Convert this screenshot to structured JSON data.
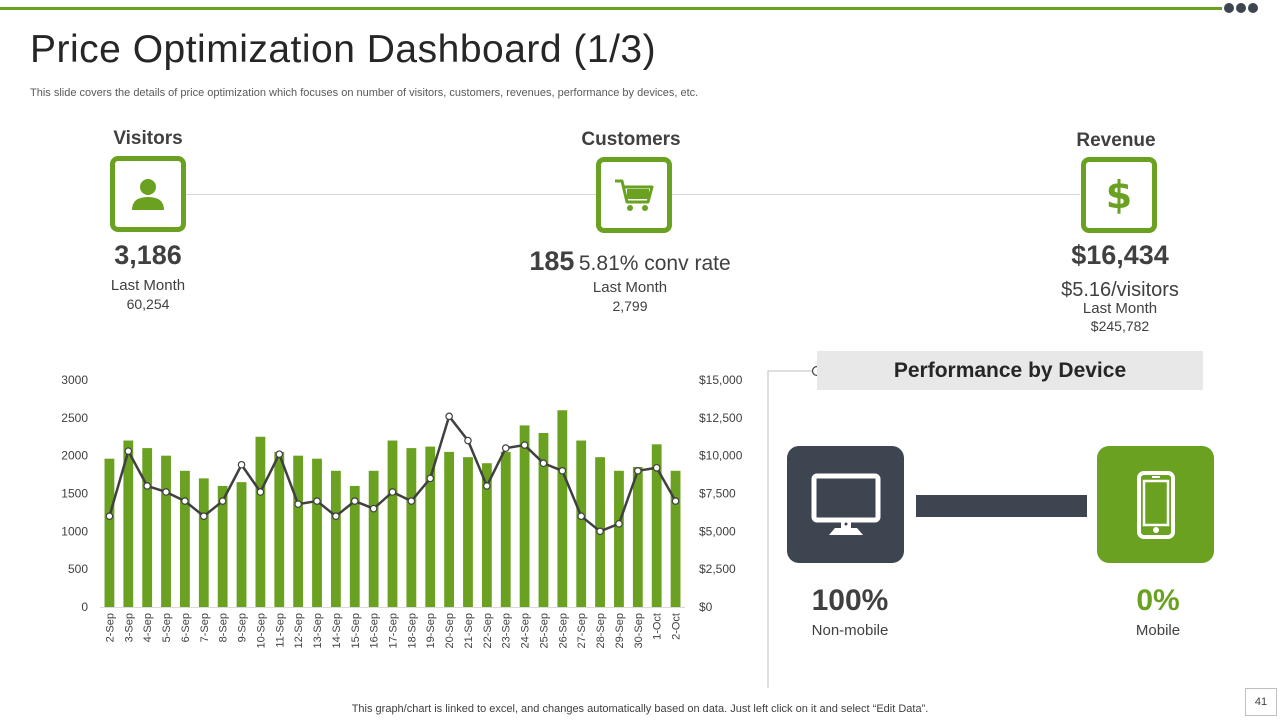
{
  "colors": {
    "accent": "#6aa121",
    "dark": "#3d4551",
    "line": "#404040",
    "bar": "#6aa121"
  },
  "header": {
    "title": "Price Optimization Dashboard (1/3)",
    "subtitle": "This slide covers the details of price optimization which focuses on number of visitors, customers, revenues, performance by devices, etc."
  },
  "kpis": {
    "visitors": {
      "label": "Visitors",
      "icon": "person-icon",
      "value": "3,186",
      "period": "Last Month",
      "period_value": "60,254"
    },
    "customers": {
      "label": "Customers",
      "icon": "cart-icon",
      "value": "185",
      "conv": "5.81% conv rate",
      "period": "Last Month",
      "period_value": "2,799"
    },
    "revenue": {
      "label": "Revenue",
      "icon": "dollar-icon",
      "value": "$16,434",
      "per_visitor": "$5.16/visitors",
      "period": "Last Month",
      "period_value": "$245,782"
    }
  },
  "chart_data": {
    "type": "bar",
    "categories": [
      "2-Sep",
      "3-Sep",
      "4-Sep",
      "5-Sep",
      "6-Sep",
      "7-Sep",
      "8-Sep",
      "9-Sep",
      "10-Sep",
      "11-Sep",
      "12-Sep",
      "13-Sep",
      "14-Sep",
      "15-Sep",
      "16-Sep",
      "17-Sep",
      "18-Sep",
      "19-Sep",
      "20-Sep",
      "21-Sep",
      "22-Sep",
      "23-Sep",
      "24-Sep",
      "25-Sep",
      "26-Sep",
      "27-Sep",
      "28-Sep",
      "29-Sep",
      "30-Sep",
      "1-Oct",
      "2-Oct"
    ],
    "series": [
      {
        "type": "bar",
        "axis": "left",
        "values": [
          1960,
          2200,
          2100,
          2000,
          1800,
          1700,
          1600,
          1650,
          2250,
          2050,
          2000,
          1960,
          1800,
          1600,
          1800,
          2200,
          2100,
          2120,
          2050,
          1980,
          1900,
          2050,
          2400,
          2300,
          2600,
          2200,
          1980,
          1800,
          1850,
          2150,
          1800
        ]
      },
      {
        "type": "line",
        "axis": "right",
        "values": [
          6000,
          10300,
          8000,
          7600,
          7000,
          6000,
          7000,
          9400,
          7600,
          10100,
          6800,
          7000,
          6000,
          7000,
          6500,
          7600,
          7000,
          8500,
          12600,
          11000,
          8000,
          10500,
          10700,
          9500,
          9000,
          6000,
          5000,
          5500,
          9000,
          9200,
          7000
        ]
      }
    ],
    "y_left": {
      "ticks": [
        "0",
        "500",
        "1000",
        "1500",
        "2000",
        "2500",
        "3000"
      ],
      "min": 0,
      "max": 3000
    },
    "y_right": {
      "ticks": [
        "$0",
        "$2,500",
        "$5,000",
        "$7,500",
        "$10,000",
        "$12,500",
        "$15,000"
      ],
      "min": 0,
      "max": 15000
    },
    "grid": false,
    "legend": "none"
  },
  "performance": {
    "title": "Performance by Device",
    "non_mobile": {
      "icon": "monitor-icon",
      "value": "100%",
      "label": "Non-mobile"
    },
    "mobile": {
      "icon": "smartphone-icon",
      "value": "0%",
      "label": "Mobile"
    }
  },
  "footer": {
    "note": "This graph/chart is linked to excel,  and changes automatically based on data. Just left click on it and select “Edit Data”.",
    "page_number": "41"
  }
}
